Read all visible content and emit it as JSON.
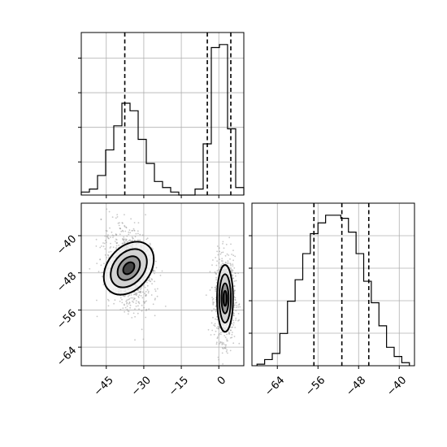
{
  "chart_data": {
    "type": "corner",
    "parameters": [
      "",
      ""
    ],
    "panels": [
      {
        "id": "hist-param1",
        "type": "histogram",
        "xlim": [
          -55,
          10
        ],
        "bins": [
          -55.0,
          -51.75,
          -48.5,
          -45.25,
          -42.0,
          -38.75,
          -35.5,
          -32.25,
          -29.0,
          -25.75,
          -22.5,
          -19.25,
          -16.0,
          -12.75,
          -9.5,
          -6.25,
          -3.0,
          0.25,
          3.5,
          6.75,
          10.0
        ],
        "counts": [
          2,
          4,
          13,
          30,
          46,
          61,
          56,
          37,
          21,
          9,
          5,
          2,
          0,
          0,
          4,
          34,
          98,
          100,
          44,
          5
        ],
        "quantiles": [
          -37.6,
          -4.6,
          4.8
        ],
        "grid": true,
        "y_ticks_labeled": false
      },
      {
        "id": "scatter-density",
        "type": "2d-density",
        "xlim": [
          -55,
          10
        ],
        "ylim": [
          -68,
          -33
        ],
        "xticks": [
          -45,
          -30,
          -15,
          0
        ],
        "yticks": [
          -40,
          -48,
          -56,
          -64
        ],
        "grid": true,
        "clusters": [
          {
            "center": [
              -36,
              -47
            ],
            "sigma": [
              4.2,
              3.2
            ],
            "angle_deg": -40,
            "weight": 0.5
          },
          {
            "center": [
              2.5,
              -53.5
            ],
            "sigma": [
              1.6,
              3.6
            ],
            "angle_deg": 0,
            "weight": 0.5
          }
        ]
      },
      {
        "id": "hist-param2",
        "type": "histogram",
        "xlim": [
          -69,
          -37
        ],
        "bins": [
          -68.0,
          -66.5,
          -65.0,
          -63.5,
          -62.0,
          -60.5,
          -59.0,
          -57.5,
          -56.0,
          -54.5,
          -53.0,
          -51.5,
          -50.0,
          -48.5,
          -47.0,
          -45.5,
          -44.0,
          -42.5,
          -41.0,
          -39.5,
          -38.0
        ],
        "counts": [
          1,
          4,
          8,
          21,
          42,
          56,
          73,
          86,
          93,
          98,
          98,
          96,
          87,
          73,
          55,
          41,
          26,
          12,
          6,
          2
        ],
        "quantiles": [
          -56.8,
          -51.3,
          -46.0
        ],
        "xticks": [
          -64,
          -56,
          -48,
          -40
        ],
        "grid": true,
        "y_ticks_labeled": false
      }
    ]
  }
}
